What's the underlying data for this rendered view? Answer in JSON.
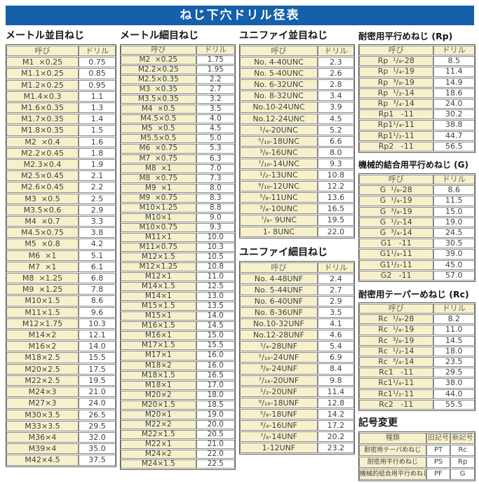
{
  "title": "ねじ下穴ドリル径表",
  "common": {
    "name_header": "呼び",
    "drill_header": "ドリル"
  },
  "colors": {
    "header_bar": "#1560a8",
    "cell_cream": "#f6f1cb",
    "border": "#8a8a8a"
  },
  "sections": {
    "metric_coarse": {
      "title": "メートル並目ねじ",
      "rows": [
        [
          "M1  ×0.25",
          "0.75"
        ],
        [
          "M1.1×0.25",
          "0.85"
        ],
        [
          "M1.2×0.25",
          "0.95"
        ],
        [
          "M1.4×0.3",
          "1.1"
        ],
        [
          "M1.6×0.35",
          "1.3"
        ],
        [
          "M1.7×0.35",
          "1.4"
        ],
        [
          "M1.8×0.35",
          "1.5"
        ],
        [
          "M2  ×0.4",
          "1.6"
        ],
        [
          "M2.2×0.45",
          "1.8"
        ],
        [
          "M2.3×0.4",
          "1.9"
        ],
        [
          "M2.5×0.45",
          "2.1"
        ],
        [
          "M2.6×0.45",
          "2.2"
        ],
        [
          "M3  ×0.5",
          "2.5"
        ],
        [
          "M3.5×0.6",
          "2.9"
        ],
        [
          "M4  ×0.7",
          "3.3"
        ],
        [
          "M4.5×0.75",
          "3.8"
        ],
        [
          "M5  ×0.8",
          "4.2"
        ],
        [
          "M6  ×1",
          "5.1"
        ],
        [
          "M7  ×1",
          "6.1"
        ],
        [
          "M8  ×1.25",
          "6.8"
        ],
        [
          "M9  ×1.25",
          "7.8"
        ],
        [
          "M10×1.5",
          "8.6"
        ],
        [
          "M11×1.5",
          "9.6"
        ],
        [
          "M12×1.75",
          "10.3"
        ],
        [
          "M14×2",
          "12.1"
        ],
        [
          "M16×2",
          "14.0"
        ],
        [
          "M18×2.5",
          "15.5"
        ],
        [
          "M20×2.5",
          "17.5"
        ],
        [
          "M22×2.5",
          "19.5"
        ],
        [
          "M24×3",
          "21.0"
        ],
        [
          "M27×3",
          "24.0"
        ],
        [
          "M30×3.5",
          "26.5"
        ],
        [
          "M33×3.5",
          "29.5"
        ],
        [
          "M36×4",
          "32.0"
        ],
        [
          "M39×4",
          "35.0"
        ],
        [
          "M42×4.5",
          "37.5"
        ]
      ]
    },
    "metric_fine": {
      "title": "メートル細目ねじ",
      "rows": [
        [
          "M2  ×0.25",
          "1.75"
        ],
        [
          "M2.2×0.25",
          "1.95"
        ],
        [
          "M2.5×0.35",
          "2.2"
        ],
        [
          "M3  ×0.35",
          "2.7"
        ],
        [
          "M3.5×0.35",
          "3.2"
        ],
        [
          "M4  ×0.5",
          "3.5"
        ],
        [
          "M4.5×0.5",
          "4.0"
        ],
        [
          "M5  ×0.5",
          "4.5"
        ],
        [
          "M5.5×0.5",
          "5.0"
        ],
        [
          "M6  ×0.75",
          "5.3"
        ],
        [
          "M7  ×0.75",
          "6.3"
        ],
        [
          "M8  ×1",
          "7.0"
        ],
        [
          "M8  ×0.75",
          "7.3"
        ],
        [
          "M9  ×1",
          "8.0"
        ],
        [
          "M9  ×0.75",
          "8.3"
        ],
        [
          "M10×1.25",
          "8.8"
        ],
        [
          "M10×1",
          "9.0"
        ],
        [
          "M10×0.75",
          "9.3"
        ],
        [
          "M11×1",
          "10.0"
        ],
        [
          "M11×0.75",
          "10.3"
        ],
        [
          "M12×1.5",
          "10.5"
        ],
        [
          "M12×1.25",
          "10.8"
        ],
        [
          "M12×1",
          "11.0"
        ],
        [
          "M14×1.5",
          "12.5"
        ],
        [
          "M14×1",
          "13.0"
        ],
        [
          "M15×1.5",
          "13.5"
        ],
        [
          "M15×1",
          "14.0"
        ],
        [
          "M16×1.5",
          "14.5"
        ],
        [
          "M16×1",
          "15.0"
        ],
        [
          "M17×1.5",
          "15.5"
        ],
        [
          "M17×1",
          "16.0"
        ],
        [
          "M18×2",
          "16.0"
        ],
        [
          "M18×1.5",
          "16.5"
        ],
        [
          "M18×1",
          "17.0"
        ],
        [
          "M20×2",
          "18.0"
        ],
        [
          "M20×1.5",
          "18.5"
        ],
        [
          "M20×1",
          "19.0"
        ],
        [
          "M22×2",
          "20.0"
        ],
        [
          "M22×1.5",
          "20.5"
        ],
        [
          "M22×1",
          "21.0"
        ],
        [
          "M24×2",
          "22.0"
        ],
        [
          "M24×1.5",
          "22.5"
        ]
      ]
    },
    "unified_coarse": {
      "title": "ユニファイ並目ねじ",
      "rows": [
        [
          "No. 4-40UNC",
          "2.3"
        ],
        [
          "No. 5-40UNC",
          "2.6"
        ],
        [
          "No. 6-32UNC",
          "2.8"
        ],
        [
          "No. 8-32UNC",
          "3.4"
        ],
        [
          "No.10-24UNC",
          "3.9"
        ],
        [
          "No.12-24UNC",
          "4.5"
        ],
        [
          "¹/₄-20UNC",
          "5.2"
        ],
        [
          "⁵/₁₆-18UNC",
          "6.6"
        ],
        [
          "³/₈-16UNC",
          "8.0"
        ],
        [
          "⁷/₁₆-14UNC",
          "9.3"
        ],
        [
          "¹/₂-13UNC",
          "10.8"
        ],
        [
          "⁹/₁₆-12UNC",
          "12.2"
        ],
        [
          "⁵/₈-11UNC",
          "13.6"
        ],
        [
          "³/₄-10UNC",
          "16.5"
        ],
        [
          "⁷/₈- 9UNC",
          "19.5"
        ],
        [
          "1- 8UNC",
          "22.0"
        ]
      ]
    },
    "unified_fine": {
      "title": "ユニファイ細目ねじ",
      "rows": [
        [
          "No. 4-48UNF",
          "2.4"
        ],
        [
          "No. 5-44UNF",
          "2.7"
        ],
        [
          "No. 6-40UNF",
          "2.9"
        ],
        [
          "No. 8-36UNF",
          "3.5"
        ],
        [
          "No.10-32UNF",
          "4.1"
        ],
        [
          "No.12-28UNF",
          "4.6"
        ],
        [
          "¹/₄-28UNF",
          "5.4"
        ],
        [
          "⁵/₁₆-24UNF",
          "6.9"
        ],
        [
          "³/₈-24UNF",
          "8.4"
        ],
        [
          "⁷/₁₆-20UNF",
          "9.8"
        ],
        [
          "¹/₂-20UNF",
          "11.4"
        ],
        [
          "⁹/₁₆-18UNF",
          "12.8"
        ],
        [
          "⁵/₈-18UNF",
          "14.2"
        ],
        [
          "³/₄-16UNF",
          "17.2"
        ],
        [
          "⁷/₈-14UNF",
          "20.2"
        ],
        [
          "1-12UNF",
          "23.2"
        ]
      ]
    },
    "rp": {
      "title": "耐密用平行めねじ (Rp)",
      "rows": [
        [
          "Rp  ¹/₈-28",
          "8.5"
        ],
        [
          "Rp  ¹/₄-19",
          "11.4"
        ],
        [
          "Rp  ³/₈-19",
          "14.9"
        ],
        [
          "Rp  ¹/₂-14",
          "18.6"
        ],
        [
          "Rp  ³/₄-14",
          "24.0"
        ],
        [
          "Rp1   -11",
          "30.2"
        ],
        [
          "Rp1¹/₄-11",
          "38.8"
        ],
        [
          "Rp1¹/₂-11",
          "44.7"
        ],
        [
          "Rp2   -11",
          "56.5"
        ]
      ]
    },
    "g": {
      "title": "機械的結合用平行めねじ (G)",
      "rows": [
        [
          "G  ¹/₈-28",
          "8.6"
        ],
        [
          "G  ¹/₄-19",
          "11.5"
        ],
        [
          "G  ³/₈-19",
          "15.0"
        ],
        [
          "G  ¹/₂-14",
          "19.0"
        ],
        [
          "G  ³/₄-14",
          "24.5"
        ],
        [
          "G1   -11",
          "30.5"
        ],
        [
          "G1¹/₄-11",
          "39.0"
        ],
        [
          "G1¹/₂-11",
          "45.0"
        ],
        [
          "G2   -11",
          "57.0"
        ]
      ]
    },
    "rc": {
      "title": "耐密用テーパーめねじ (Rc)",
      "rows": [
        [
          "Rc  ¹/₈-28",
          "8.2"
        ],
        [
          "Rc  ¹/₄-19",
          "11.0"
        ],
        [
          "Rc  ³/₈-19",
          "14.5"
        ],
        [
          "Rc  ¹/₂-14",
          "18.0"
        ],
        [
          "Rc  ³/₄-14",
          "23.5"
        ],
        [
          "Rc1   -11",
          "29.5"
        ],
        [
          "Rc1¹/₄-11",
          "38.0"
        ],
        [
          "Rc1¹/₂-11",
          "44.0"
        ],
        [
          "Rc2   -11",
          "55.5"
        ]
      ]
    },
    "symbol_change": {
      "title": "記号変更",
      "headers": [
        "種類",
        "旧記号",
        "新記号"
      ],
      "rows": [
        [
          "耐密用テーパめねじ",
          "PT",
          "Rc"
        ],
        [
          "耐密用平行めねじ",
          "PS",
          "Rp"
        ],
        [
          "機械的結合用平行めねじ",
          "PF",
          "G"
        ]
      ]
    }
  }
}
